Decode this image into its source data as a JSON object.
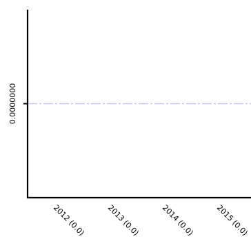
{
  "chart_data": {
    "type": "line",
    "title": "",
    "xlabel": "",
    "ylabel": "",
    "x": [
      "2012",
      "2013",
      "2014",
      "2015"
    ],
    "x_tick_labels": [
      "2012 (0.0)",
      "2013 (0.0)",
      "2014 (0.0)",
      "2015 (0.0)"
    ],
    "y_tick_labels": [
      "0.0000000"
    ],
    "ylim": [
      -1,
      1
    ],
    "grid": false,
    "legend": "none",
    "series": [
      {
        "values": [
          0.0,
          0.0,
          0.0,
          0.0
        ],
        "color": "#c9c6ee"
      }
    ]
  }
}
